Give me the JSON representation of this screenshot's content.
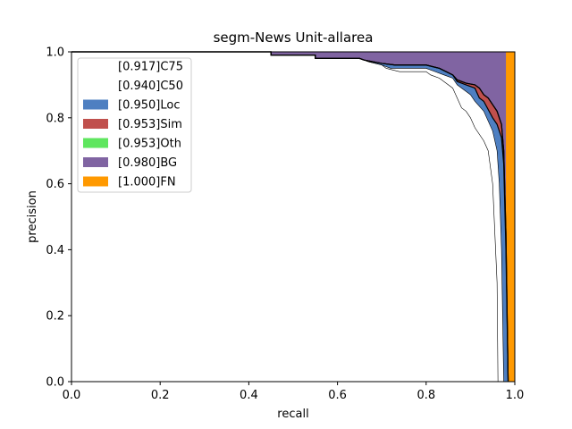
{
  "chart_data": {
    "type": "area",
    "title": "segm-News Unit-allarea",
    "xlabel": "recall",
    "ylabel": "precision",
    "xlim": [
      0,
      1
    ],
    "ylim": [
      0,
      1
    ],
    "xticks": [
      "0.0",
      "0.2",
      "0.4",
      "0.6",
      "0.8",
      "1.0"
    ],
    "yticks": [
      "0.0",
      "0.2",
      "0.4",
      "0.6",
      "0.8",
      "1.0"
    ],
    "grid": false,
    "legend_position": "top-left",
    "series": [
      {
        "name": "[0.917]C75",
        "color": "#ffffff",
        "line_color": "#000000",
        "line_width": 0.6,
        "points": [
          [
            0,
            1
          ],
          [
            0.45,
            1
          ],
          [
            0.45,
            0.99
          ],
          [
            0.55,
            0.99
          ],
          [
            0.55,
            0.98
          ],
          [
            0.65,
            0.98
          ],
          [
            0.67,
            0.97
          ],
          [
            0.7,
            0.96
          ],
          [
            0.71,
            0.95
          ],
          [
            0.74,
            0.94
          ],
          [
            0.8,
            0.94
          ],
          [
            0.81,
            0.93
          ],
          [
            0.83,
            0.92
          ],
          [
            0.86,
            0.89
          ],
          [
            0.87,
            0.86
          ],
          [
            0.88,
            0.83
          ],
          [
            0.89,
            0.82
          ],
          [
            0.9,
            0.8
          ],
          [
            0.91,
            0.77
          ],
          [
            0.93,
            0.73
          ],
          [
            0.94,
            0.7
          ],
          [
            0.95,
            0.6
          ],
          [
            0.96,
            0.3
          ],
          [
            0.962,
            0
          ]
        ]
      },
      {
        "name": "[0.940]C50",
        "color": "#ffffff",
        "line_color": "#000000",
        "line_width": 0.6,
        "points": [
          [
            0,
            1
          ],
          [
            0.45,
            1
          ],
          [
            0.45,
            0.99
          ],
          [
            0.55,
            0.99
          ],
          [
            0.55,
            0.98
          ],
          [
            0.65,
            0.98
          ],
          [
            0.67,
            0.97
          ],
          [
            0.7,
            0.96
          ],
          [
            0.72,
            0.95
          ],
          [
            0.8,
            0.95
          ],
          [
            0.82,
            0.94
          ],
          [
            0.84,
            0.93
          ],
          [
            0.86,
            0.92
          ],
          [
            0.87,
            0.9
          ],
          [
            0.9,
            0.87
          ],
          [
            0.91,
            0.85
          ],
          [
            0.93,
            0.82
          ],
          [
            0.95,
            0.76
          ],
          [
            0.96,
            0.7
          ],
          [
            0.965,
            0.6
          ],
          [
            0.97,
            0.4
          ],
          [
            0.975,
            0
          ]
        ]
      },
      {
        "name": "[0.950]Loc",
        "color": "#4e7fc1",
        "points": [
          [
            0,
            1
          ],
          [
            0.45,
            1
          ],
          [
            0.45,
            0.99
          ],
          [
            0.55,
            0.99
          ],
          [
            0.55,
            0.98
          ],
          [
            0.65,
            0.98
          ],
          [
            0.66,
            0.975
          ],
          [
            0.7,
            0.965
          ],
          [
            0.73,
            0.96
          ],
          [
            0.8,
            0.96
          ],
          [
            0.83,
            0.95
          ],
          [
            0.86,
            0.93
          ],
          [
            0.87,
            0.91
          ],
          [
            0.89,
            0.9
          ],
          [
            0.91,
            0.89
          ],
          [
            0.92,
            0.86
          ],
          [
            0.93,
            0.85
          ],
          [
            0.95,
            0.8
          ],
          [
            0.96,
            0.78
          ],
          [
            0.97,
            0.74
          ],
          [
            0.975,
            0.66
          ],
          [
            0.98,
            0.4
          ],
          [
            0.985,
            0
          ]
        ]
      },
      {
        "name": "[0.953]Sim",
        "color": "#c0504d",
        "points": [
          [
            0,
            1
          ],
          [
            0.45,
            1
          ],
          [
            0.45,
            0.99
          ],
          [
            0.55,
            0.99
          ],
          [
            0.55,
            0.98
          ],
          [
            0.65,
            0.98
          ],
          [
            0.66,
            0.975
          ],
          [
            0.7,
            0.965
          ],
          [
            0.73,
            0.96
          ],
          [
            0.8,
            0.96
          ],
          [
            0.83,
            0.95
          ],
          [
            0.86,
            0.93
          ],
          [
            0.87,
            0.915
          ],
          [
            0.89,
            0.905
          ],
          [
            0.91,
            0.9
          ],
          [
            0.92,
            0.89
          ],
          [
            0.93,
            0.87
          ],
          [
            0.94,
            0.86
          ],
          [
            0.95,
            0.84
          ],
          [
            0.96,
            0.82
          ],
          [
            0.97,
            0.78
          ],
          [
            0.975,
            0.7
          ],
          [
            0.98,
            0.45
          ],
          [
            0.985,
            0
          ]
        ]
      },
      {
        "name": "[0.953]Oth",
        "color": "#5ee65e",
        "points": [
          [
            0,
            1
          ],
          [
            0.45,
            1
          ],
          [
            0.45,
            0.99
          ],
          [
            0.55,
            0.99
          ],
          [
            0.55,
            0.98
          ],
          [
            0.65,
            0.98
          ],
          [
            0.66,
            0.975
          ],
          [
            0.7,
            0.965
          ],
          [
            0.73,
            0.96
          ],
          [
            0.8,
            0.96
          ],
          [
            0.83,
            0.95
          ],
          [
            0.86,
            0.93
          ],
          [
            0.87,
            0.915
          ],
          [
            0.89,
            0.905
          ],
          [
            0.91,
            0.9
          ],
          [
            0.92,
            0.89
          ],
          [
            0.93,
            0.87
          ],
          [
            0.94,
            0.86
          ],
          [
            0.95,
            0.84
          ],
          [
            0.96,
            0.82
          ],
          [
            0.97,
            0.78
          ],
          [
            0.975,
            0.7
          ],
          [
            0.98,
            0.45
          ],
          [
            0.985,
            0
          ]
        ]
      },
      {
        "name": "[0.980]BG",
        "color": "#8064a2",
        "points": [
          [
            0,
            1
          ],
          [
            0.98,
            1
          ],
          [
            0.98,
            0
          ]
        ]
      },
      {
        "name": "[1.000]FN",
        "color": "#ff9900",
        "points": [
          [
            0,
            1
          ],
          [
            1,
            1
          ],
          [
            1,
            0
          ]
        ]
      }
    ]
  }
}
